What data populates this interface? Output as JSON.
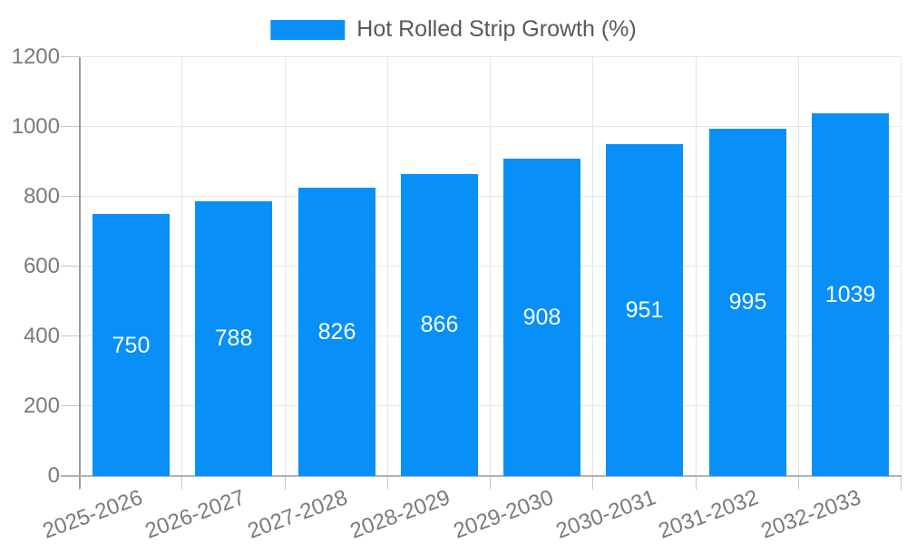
{
  "chart_data": {
    "type": "bar",
    "series_name": "Hot Rolled Strip Growth (%)",
    "categories": [
      "2025-2026",
      "2026-2027",
      "2027-2028",
      "2028-2029",
      "2029-2030",
      "2030-2031",
      "2031-2032",
      "2032-2033"
    ],
    "values": [
      750,
      788,
      826,
      866,
      908,
      951,
      995,
      1039
    ],
    "xlabel": "",
    "ylabel": "",
    "ylim": [
      0,
      1200
    ],
    "y_ticks": [
      0,
      200,
      400,
      600,
      800,
      1000,
      1200
    ],
    "grid": true,
    "legend_position": "top-center",
    "value_labels_position": "inside-center",
    "x_label_rotation_deg": -20
  },
  "colors": {
    "bar": "#0890f8",
    "background": "#ffffff",
    "grid_line": "#e6e6e6",
    "tick_mark": "#c6c6c6",
    "y_axis_line": "#9c9c9c",
    "x_axis_line": "#b2b2b2",
    "tick_label": "#7a7a7a",
    "legend_text": "#595959",
    "value_label": "#ffffff"
  }
}
